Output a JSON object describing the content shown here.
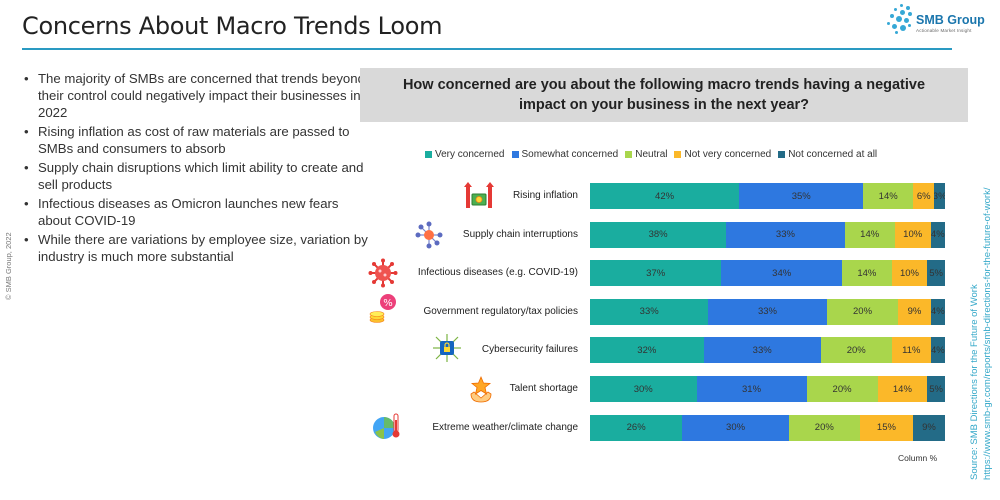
{
  "slide": {
    "title": "Concerns About Macro Trends Loom",
    "copyright": "© SMB Group, 2022",
    "logo": {
      "name": "SMB Group",
      "tagline": "Actionable Market Insight"
    },
    "bullets": [
      "The majority of SMBs are concerned that trends beyond their control could negatively impact their businesses in 2022",
      "Rising inflation as cost of raw materials are passed to SMBs and consumers to absorb",
      "Supply chain disruptions which limit ability to create and sell products",
      "Infectious diseases as Omicron launches new fears about COVID-19",
      "While there are variations by employee size, variation by industry is much more substantial"
    ],
    "question": "How concerned are you about the following macro trends having a negative impact on your business in the next year?",
    "column_note": "Column %",
    "source_line1": "Source: SMB Directions for the Future of Work",
    "source_line2": "https://www.smb-gr.com/reports/smb-directions-for-the-future-of-work/"
  },
  "colors": {
    "very": "#1aad9f",
    "somewhat": "#2e78e0",
    "neutral": "#a9d64c",
    "not_very": "#fbb829",
    "not_at_all": "#236b87",
    "accent": "#2a9ac2"
  },
  "chart_data": {
    "type": "bar",
    "orientation": "horizontal-stacked-100",
    "title": "How concerned are you about the following macro trends having a negative impact on your business in the next year?",
    "categories": [
      "Rising inflation",
      "Supply chain interruptions",
      "Infectious diseases (e.g. COVID-19)",
      "Government regulatory/tax policies",
      "Cybersecurity failures",
      "Talent shortage",
      "Extreme weather/climate change"
    ],
    "category_icons": [
      "rising-money-icon",
      "supply-network-icon",
      "virus-icon",
      "tax-percent-icon",
      "cyber-chip-icon",
      "talent-star-icon",
      "climate-thermometer-icon"
    ],
    "series": [
      {
        "name": "Very concerned",
        "color": "#1aad9f",
        "values": [
          42,
          38,
          37,
          33,
          32,
          30,
          26
        ]
      },
      {
        "name": "Somewhat concerned",
        "color": "#2e78e0",
        "values": [
          35,
          33,
          34,
          33,
          33,
          31,
          30
        ]
      },
      {
        "name": "Neutral",
        "color": "#a9d64c",
        "values": [
          14,
          14,
          14,
          20,
          20,
          20,
          20
        ]
      },
      {
        "name": "Not very concerned",
        "color": "#fbb829",
        "values": [
          6,
          10,
          10,
          9,
          11,
          14,
          15
        ]
      },
      {
        "name": "Not concerned at all",
        "color": "#236b87",
        "values": [
          3,
          4,
          5,
          4,
          4,
          5,
          9
        ]
      }
    ],
    "value_suffix": "%",
    "xlim": [
      0,
      100
    ],
    "legend_position": "top",
    "grid": false
  }
}
